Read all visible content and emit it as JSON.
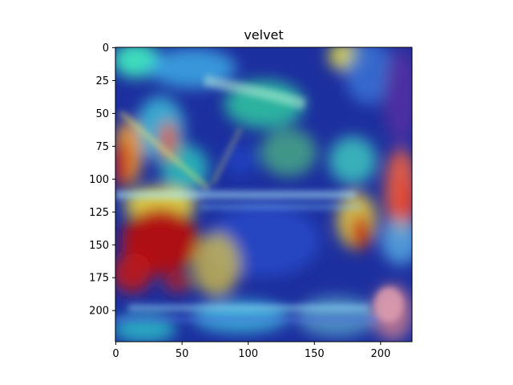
{
  "figure": {
    "title": "velvet",
    "image_description_kind": "grad-cam heatmap overlay on photo",
    "x_axis": {
      "ticks": [
        {
          "value": 0,
          "label": "0"
        },
        {
          "value": 50,
          "label": "50"
        },
        {
          "value": 100,
          "label": "100"
        },
        {
          "value": 150,
          "label": "150"
        },
        {
          "value": 200,
          "label": "200"
        }
      ],
      "range": [
        0,
        224
      ]
    },
    "y_axis": {
      "ticks": [
        {
          "value": 0,
          "label": "0"
        },
        {
          "value": 25,
          "label": "25"
        },
        {
          "value": 50,
          "label": "50"
        },
        {
          "value": 75,
          "label": "75"
        },
        {
          "value": 100,
          "label": "100"
        },
        {
          "value": 125,
          "label": "125"
        },
        {
          "value": 150,
          "label": "150"
        },
        {
          "value": 175,
          "label": "175"
        },
        {
          "value": 200,
          "label": "200"
        }
      ],
      "range": [
        0,
        224
      ],
      "inverted": true
    },
    "colors": {
      "base": "#1a2a9a",
      "hot": "#b01010",
      "warm": "#e8d020",
      "cool": "#30d0e0"
    }
  }
}
